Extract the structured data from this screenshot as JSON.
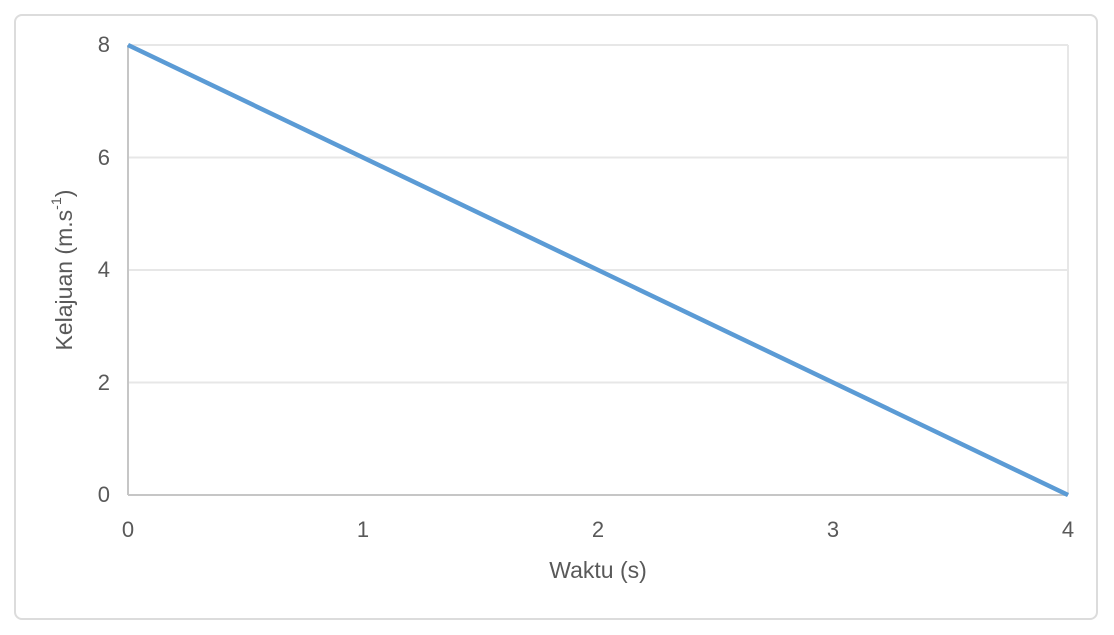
{
  "chart_data": {
    "type": "line",
    "title": "",
    "xlabel": "Waktu (s)",
    "ylabel": "Kelajuan (m.s⁻¹)",
    "ylabel_parts": {
      "base": "Kelajuan (m.s",
      "sup": "-1",
      "end": ")"
    },
    "x": [
      0,
      4
    ],
    "series": [
      {
        "values": [
          8,
          0
        ]
      }
    ],
    "xlim": [
      0,
      4
    ],
    "ylim": [
      0,
      8
    ],
    "xticks": [
      0,
      1,
      2,
      3,
      4
    ],
    "yticks": [
      0,
      2,
      4,
      6,
      8
    ],
    "grid": "horizontal",
    "legend": "none"
  },
  "colors": {
    "series_line": "#5b9bd5",
    "gridline": "#e7e7e7",
    "axis_line": "#c6c6c6",
    "plot_border": "#e7e7e7",
    "tick_text": "#595959",
    "card_border": "#dcdcdc",
    "background": "#ffffff"
  }
}
